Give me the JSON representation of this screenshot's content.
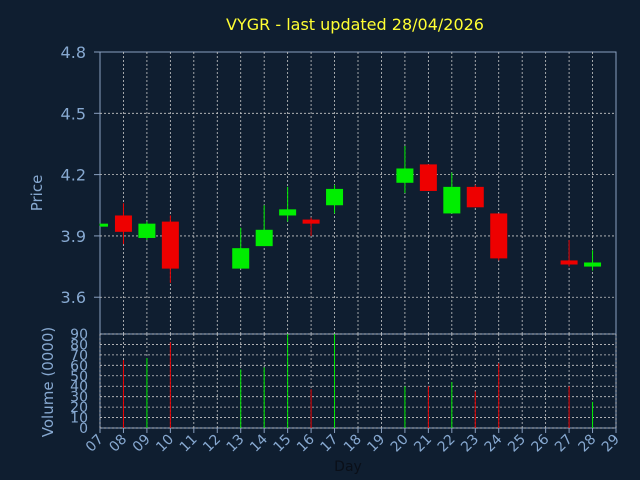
{
  "chart_data": {
    "type": "candlestick",
    "title": "VYGR - last updated 28/04/2026",
    "ylabel": "Price",
    "volume_ylabel": "Volume (0000)",
    "xlabel": "Day",
    "ylim": [
      3.42,
      4.8
    ],
    "price_ticks": [
      "4.8",
      "4.5",
      "4.2",
      "3.9",
      "3.6"
    ],
    "volume_ylim": [
      0,
      90
    ],
    "volume_ticks": [
      "90",
      "80",
      "70",
      "60",
      "50",
      "40",
      "30",
      "20",
      "10",
      "0"
    ],
    "x_labels": [
      "07",
      "08",
      "09",
      "10",
      "11",
      "12",
      "13",
      "14",
      "15",
      "16",
      "17",
      "18",
      "19",
      "20",
      "21",
      "22",
      "23",
      "24",
      "25",
      "26",
      "27",
      "28",
      "29"
    ],
    "grid": true,
    "colors": {
      "up": "#00ee00",
      "down": "#ee0000",
      "grid": "#c8c8c8",
      "frame": "#8aa0c0",
      "title": "#ffff33",
      "text": "#87a9d1",
      "background": "#0f1e30"
    },
    "candles": [
      {
        "day": "07",
        "open": 3.95,
        "close": 3.96,
        "high": 3.96,
        "low": 3.95,
        "volume": 0
      },
      {
        "day": "08",
        "open": 4.0,
        "close": 3.92,
        "high": 4.06,
        "low": 3.86,
        "volume": 65
      },
      {
        "day": "09",
        "open": 3.89,
        "close": 3.96,
        "high": 3.97,
        "low": 3.88,
        "volume": 67
      },
      {
        "day": "10",
        "open": 3.97,
        "close": 3.74,
        "high": 4.0,
        "low": 3.67,
        "volume": 82
      },
      {
        "day": "13",
        "open": 3.74,
        "close": 3.84,
        "high": 3.94,
        "low": 3.74,
        "volume": 56
      },
      {
        "day": "14",
        "open": 3.85,
        "close": 3.93,
        "high": 4.05,
        "low": 3.85,
        "volume": 58
      },
      {
        "day": "15",
        "open": 4.0,
        "close": 4.03,
        "high": 4.14,
        "low": 3.97,
        "volume": 90
      },
      {
        "day": "16",
        "open": 3.98,
        "close": 3.96,
        "high": 3.99,
        "low": 3.9,
        "volume": 37
      },
      {
        "day": "17",
        "open": 4.05,
        "close": 4.13,
        "high": 4.15,
        "low": 4.01,
        "volume": 90
      },
      {
        "day": "20",
        "open": 4.16,
        "close": 4.23,
        "high": 4.34,
        "low": 4.11,
        "volume": 40
      },
      {
        "day": "21",
        "open": 4.25,
        "close": 4.12,
        "high": 4.25,
        "low": 4.12,
        "volume": 40
      },
      {
        "day": "22",
        "open": 4.01,
        "close": 4.14,
        "high": 4.21,
        "low": 4.01,
        "volume": 44
      },
      {
        "day": "23",
        "open": 4.14,
        "close": 4.04,
        "high": 4.15,
        "low": 4.04,
        "volume": 35
      },
      {
        "day": "24",
        "open": 4.01,
        "close": 3.79,
        "high": 4.01,
        "low": 3.78,
        "volume": 62
      },
      {
        "day": "27",
        "open": 3.78,
        "close": 3.76,
        "high": 3.88,
        "low": 3.75,
        "volume": 40
      },
      {
        "day": "28",
        "open": 3.75,
        "close": 3.77,
        "high": 3.83,
        "low": 3.73,
        "volume": 25
      }
    ]
  }
}
